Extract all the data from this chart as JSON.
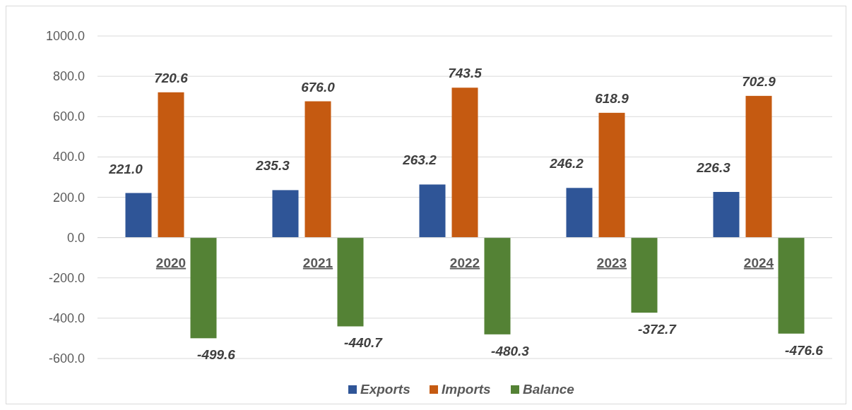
{
  "chart_data": {
    "type": "bar",
    "categories": [
      "2020",
      "2021",
      "2022",
      "2023",
      "2024"
    ],
    "series": [
      {
        "name": "Exports",
        "color": "#2f5597",
        "values": [
          221.0,
          235.3,
          263.2,
          246.2,
          226.3
        ],
        "value_labels": [
          "221.0",
          "235.3",
          "263.2",
          "246.2",
          "226.3"
        ]
      },
      {
        "name": "Imports",
        "color": "#c55a11",
        "values": [
          720.6,
          676.0,
          743.5,
          618.9,
          702.9
        ],
        "value_labels": [
          "720.6",
          "676.0",
          "743.5",
          "618.9",
          "702.9"
        ]
      },
      {
        "name": "Balance",
        "color": "#548235",
        "values": [
          -499.6,
          -440.7,
          -480.3,
          -372.7,
          -476.6
        ],
        "value_labels": [
          "-499.6",
          "-440.7",
          "-480.3",
          "-372.7",
          "-476.6"
        ]
      }
    ],
    "ylim": [
      -600,
      1000
    ],
    "yticks": [
      {
        "value": -600,
        "label": "-600.0"
      },
      {
        "value": -400,
        "label": "-400.0"
      },
      {
        "value": -200,
        "label": "-200.0"
      },
      {
        "value": 0,
        "label": "0.0"
      },
      {
        "value": 200,
        "label": "200.0"
      },
      {
        "value": 400,
        "label": "400.0"
      },
      {
        "value": 600,
        "label": "600.0"
      },
      {
        "value": 800,
        "label": "800.0"
      },
      {
        "value": 1000,
        "label": "1000.0"
      }
    ],
    "grid": "y",
    "legend": "bottom"
  }
}
